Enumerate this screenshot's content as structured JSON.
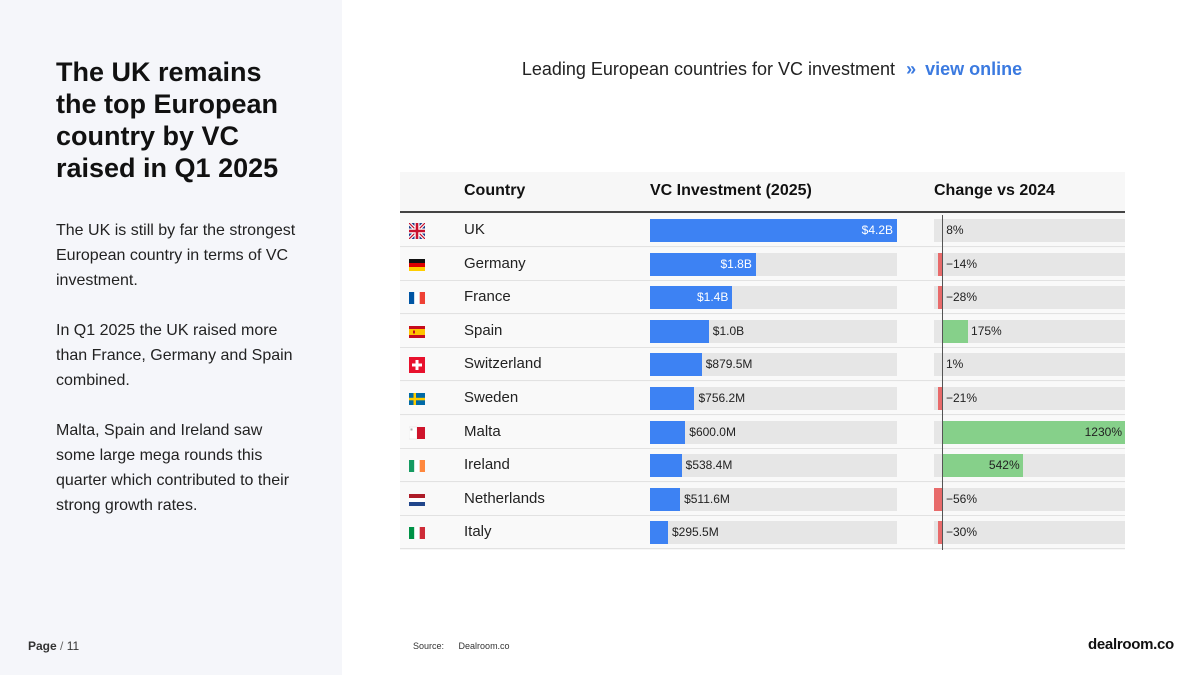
{
  "headline": "The UK remains the top European country by VC raised in Q1 2025",
  "paragraphs": [
    "The UK is still by far the strongest European country in terms of VC investment.",
    "In Q1 2025 the UK raised more than France, Germany and Spain combined.",
    "Malta, Spain and Ireland saw some large mega rounds this quarter which contributed to their strong growth rates."
  ],
  "page": {
    "label": "Page",
    "separator": "/",
    "number": "11"
  },
  "source": {
    "label": "Source:",
    "value": "Dealroom.co"
  },
  "logo": "dealroom.co",
  "colors": {
    "accent": "#3d82f3",
    "positive": "#86d08a",
    "negative": "#e86b6b",
    "link": "#3b7ae0"
  },
  "chart_data": {
    "type": "table",
    "title": "Leading European countries for VC investment",
    "link_arrow": "»",
    "link_text": "view online",
    "columns": [
      "Country",
      "VC Investment (2025)",
      "Change vs 2024"
    ],
    "rows": [
      {
        "flag": "uk-flag-icon",
        "country": "UK",
        "investment": 4200,
        "investment_label": "$4.2B",
        "change": 8,
        "change_label": "8%"
      },
      {
        "flag": "germany-flag-icon",
        "country": "Germany",
        "investment": 1800,
        "investment_label": "$1.8B",
        "change": -14,
        "change_label": "−14%"
      },
      {
        "flag": "france-flag-icon",
        "country": "France",
        "investment": 1400,
        "investment_label": "$1.4B",
        "change": -28,
        "change_label": "−28%"
      },
      {
        "flag": "spain-flag-icon",
        "country": "Spain",
        "investment": 1000,
        "investment_label": "$1.0B",
        "change": 175,
        "change_label": "175%"
      },
      {
        "flag": "switzerland-flag-icon",
        "country": "Switzerland",
        "investment": 879.5,
        "investment_label": "$879.5M",
        "change": 1,
        "change_label": "1%"
      },
      {
        "flag": "sweden-flag-icon",
        "country": "Sweden",
        "investment": 756.2,
        "investment_label": "$756.2M",
        "change": -21,
        "change_label": "−21%"
      },
      {
        "flag": "malta-flag-icon",
        "country": "Malta",
        "investment": 600.0,
        "investment_label": "$600.0M",
        "change": 1230,
        "change_label": "1230%"
      },
      {
        "flag": "ireland-flag-icon",
        "country": "Ireland",
        "investment": 538.4,
        "investment_label": "$538.4M",
        "change": 542,
        "change_label": "542%"
      },
      {
        "flag": "netherlands-flag-icon",
        "country": "Netherlands",
        "investment": 511.6,
        "investment_label": "$511.6M",
        "change": -56,
        "change_label": "−56%"
      },
      {
        "flag": "italy-flag-icon",
        "country": "Italy",
        "investment": 295.5,
        "investment_label": "$295.5M",
        "change": -30,
        "change_label": "−30%"
      }
    ],
    "investment_max": 4200,
    "change_max": 1230,
    "unit_investment": "USD millions",
    "unit_change": "percent"
  }
}
